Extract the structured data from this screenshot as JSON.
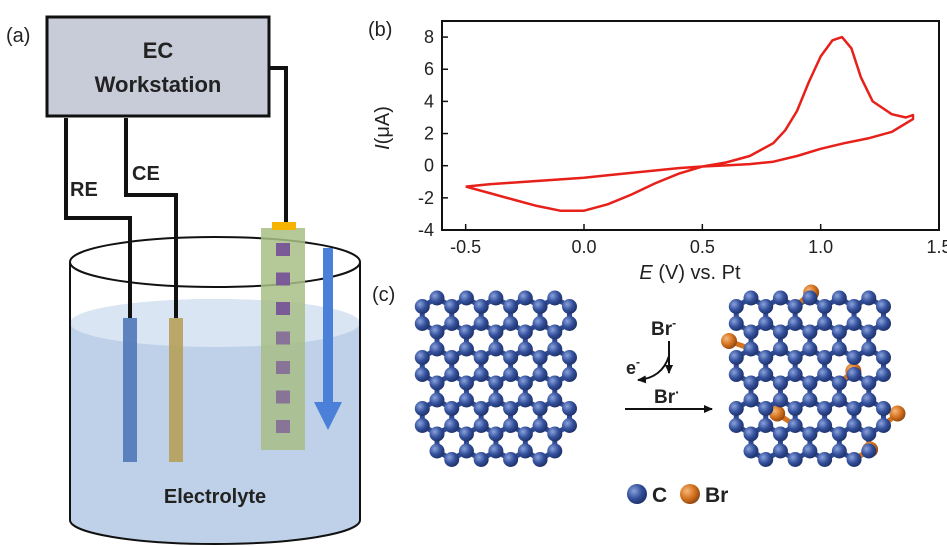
{
  "panel_a": {
    "label": "(a)",
    "workstation": {
      "line1": "EC",
      "line2": "Workstation"
    },
    "electrodes": {
      "re": "RE",
      "ce": "CE"
    },
    "electrolyte": "Electrolyte",
    "colors": {
      "box": "#c8ccd8",
      "re": "#4f78b8",
      "ce": "#b6a05a",
      "we": "#a7be86",
      "we_square": "#7b5a98",
      "we_tip": "#f5b400",
      "arrow": "#4a80d8",
      "liquid": "#b8cce6"
    }
  },
  "panel_b": {
    "label": "(b)",
    "y_axis_label": {
      "italic": "I",
      "rest": "(μA)"
    },
    "x_axis_label": {
      "italic": "E",
      "rest": " (V) vs. Pt"
    }
  },
  "chart_data": {
    "type": "line",
    "title": "",
    "xlabel": "E (V) vs. Pt",
    "ylabel": "I(μA)",
    "xlim": [
      -0.6,
      1.5
    ],
    "ylim": [
      -4,
      9
    ],
    "x_ticks": [
      -0.5,
      0.0,
      0.5,
      1.0,
      1.5
    ],
    "x_tick_labels": [
      "-0.5",
      "0.0",
      "0.5",
      "1.0",
      "1.5"
    ],
    "y_ticks": [
      -4,
      -2,
      0,
      2,
      4,
      6,
      8
    ],
    "y_tick_labels": [
      "-4",
      "-2",
      "0",
      "2",
      "4",
      "6",
      "8"
    ],
    "line_color": "#e8201a",
    "series": [
      {
        "x": [
          -0.5,
          -0.4,
          -0.3,
          -0.2,
          -0.1,
          0.0,
          0.1,
          0.2,
          0.3,
          0.4,
          0.5,
          0.6,
          0.7,
          0.8,
          0.85,
          0.9,
          0.95,
          1.0,
          1.05,
          1.09,
          1.13,
          1.17,
          1.22,
          1.3,
          1.36,
          1.39,
          1.39,
          1.3,
          1.2,
          1.1,
          1.0,
          0.9,
          0.8,
          0.7,
          0.6,
          0.5,
          0.4,
          0.3,
          0.2,
          0.1,
          0.0,
          -0.1,
          -0.2,
          -0.3,
          -0.4,
          -0.5
        ],
        "y": [
          -1.3,
          -1.7,
          -2.1,
          -2.5,
          -2.8,
          -2.8,
          -2.4,
          -1.8,
          -1.1,
          -0.5,
          -0.05,
          0.2,
          0.6,
          1.4,
          2.2,
          3.4,
          5.2,
          6.8,
          7.8,
          8.0,
          7.3,
          5.5,
          4.0,
          3.2,
          3.0,
          3.15,
          2.9,
          2.1,
          1.7,
          1.4,
          1.05,
          0.6,
          0.25,
          0.1,
          0.02,
          -0.05,
          -0.15,
          -0.3,
          -0.45,
          -0.6,
          -0.75,
          -0.85,
          -0.95,
          -1.05,
          -1.15,
          -1.3
        ]
      }
    ]
  },
  "panel_c": {
    "label": "(c)",
    "reaction": {
      "reactant": "Br",
      "reactant_sup": "-",
      "electron": "e",
      "electron_sup": "-",
      "product": "Br",
      "product_sup": "·"
    },
    "legend": {
      "carbon": "C",
      "bromine": "Br"
    },
    "colors": {
      "carbon": "#2f4a93",
      "bromine": "#d4731f",
      "bond": "#2f4a93"
    }
  }
}
